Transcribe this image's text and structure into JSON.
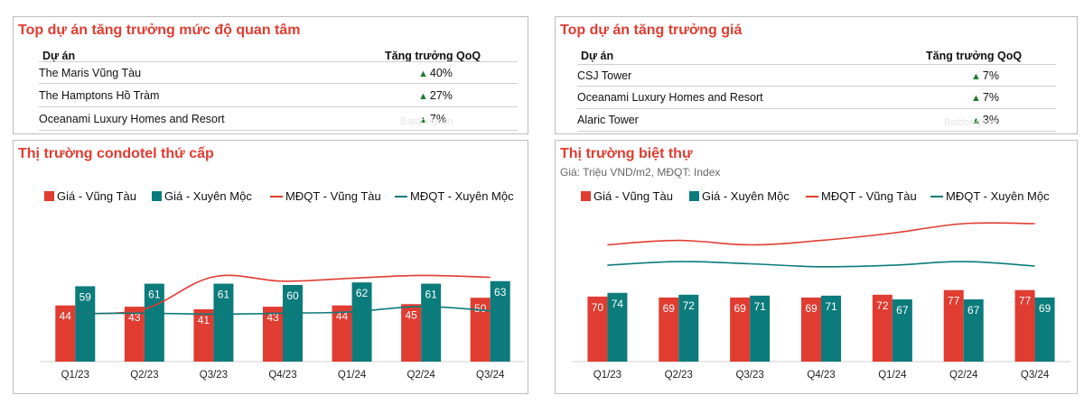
{
  "tables": [
    {
      "title": "Top dự án tăng trưởng mức độ quan tâm",
      "col_project": "Dự án",
      "col_growth": "Tăng trưởng QoQ",
      "rows": [
        {
          "name": "The Maris Vũng Tàu",
          "growth": "40%"
        },
        {
          "name": "The Hamptons Hồ Tràm",
          "growth": "27%"
        },
        {
          "name": "Oceanami Luxury Homes and Resort",
          "growth": "7%"
        }
      ]
    },
    {
      "title": "Top dự án tăng trưởng giá",
      "col_project": "Dự án",
      "col_growth": "Tăng trưởng QoQ",
      "rows": [
        {
          "name": "CSJ Tower",
          "growth": "7%"
        },
        {
          "name": "Oceanami Luxury Homes and Resort",
          "growth": "7%"
        },
        {
          "name": "Alaric Tower",
          "growth": "3%"
        }
      ]
    }
  ],
  "watermark_text": "Batdongsan",
  "colors": {
    "accent_title": "#e03c31",
    "bar_vungtau": "#e03c31",
    "bar_xuyenmoc": "#0b7b7b",
    "line_vungtau": "#e03c31",
    "line_xuyenmoc": "#0b7b7b",
    "up_arrow": "#1f7a2e"
  },
  "chart_data": [
    {
      "type": "bar",
      "title": "Thị trường condotel thứ cấp",
      "subtitle": "",
      "categories": [
        "Q1/23",
        "Q2/23",
        "Q3/23",
        "Q4/23",
        "Q1/24",
        "Q2/24",
        "Q3/24"
      ],
      "series": [
        {
          "name": "Giá - Vũng Tàu",
          "kind": "bar",
          "color": "#e03c31",
          "values": [
            44,
            43,
            41,
            43,
            44,
            45,
            50
          ]
        },
        {
          "name": "Giá - Xuyên Mộc",
          "kind": "bar",
          "color": "#0b7b7b",
          "values": [
            59,
            61,
            61,
            60,
            62,
            61,
            63
          ]
        },
        {
          "name": "MĐQT - Vũng Tàu",
          "kind": "line",
          "color": "#e03c31",
          "values": [
            100,
            110,
            177,
            168,
            174,
            180,
            176
          ]
        },
        {
          "name": "MĐQT - Xuyên Mộc",
          "kind": "line",
          "color": "#0b7b7b",
          "values": [
            100,
            101,
            99,
            101,
            104,
            115,
            106
          ]
        }
      ],
      "bar_ylim": [
        0,
        120
      ],
      "line_ylim": [
        0,
        320
      ],
      "legend_position": "top",
      "grid": false
    },
    {
      "type": "bar",
      "title": "Thị trường biệt thự",
      "subtitle": "Giá: Triệu VND/m2, MĐQT: Index",
      "categories": [
        "Q1/23",
        "Q2/23",
        "Q3/23",
        "Q4/23",
        "Q1/24",
        "Q2/24",
        "Q3/24"
      ],
      "series": [
        {
          "name": "Giá - Vũng Tàu",
          "kind": "bar",
          "color": "#e03c31",
          "values": [
            70,
            69,
            69,
            69,
            72,
            77,
            77
          ]
        },
        {
          "name": "Giá - Xuyên Mộc",
          "kind": "bar",
          "color": "#0b7b7b",
          "values": [
            74,
            72,
            71,
            71,
            67,
            67,
            69
          ]
        },
        {
          "name": "MĐQT - Vũng Tàu",
          "kind": "line",
          "color": "#e03c31",
          "values": [
            100,
            106,
            100,
            106,
            116,
            129,
            129
          ]
        },
        {
          "name": "MĐQT - Xuyên Mộc",
          "kind": "line",
          "color": "#0b7b7b",
          "values": [
            72,
            77,
            74,
            70,
            72,
            77,
            71
          ]
        }
      ],
      "bar_ylim": [
        0,
        165
      ],
      "line_ylim": [
        -60,
        150
      ],
      "legend_position": "top",
      "grid": false
    }
  ]
}
